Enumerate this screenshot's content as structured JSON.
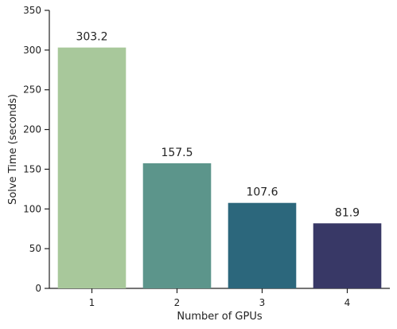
{
  "chart_data": {
    "type": "bar",
    "categories": [
      "1",
      "2",
      "3",
      "4"
    ],
    "values": [
      303.2,
      157.5,
      107.6,
      81.9
    ],
    "value_labels": [
      "303.2",
      "157.5",
      "107.6",
      "81.9"
    ],
    "colors": [
      "#a8c89b",
      "#5c958b",
      "#2c677c",
      "#383866"
    ],
    "xlabel": "Number of GPUs",
    "ylabel": "Solve Time (seconds)",
    "ylim": [
      0,
      350
    ],
    "yticks": [
      0,
      50,
      100,
      150,
      200,
      250,
      300,
      350
    ],
    "grid": false
  }
}
